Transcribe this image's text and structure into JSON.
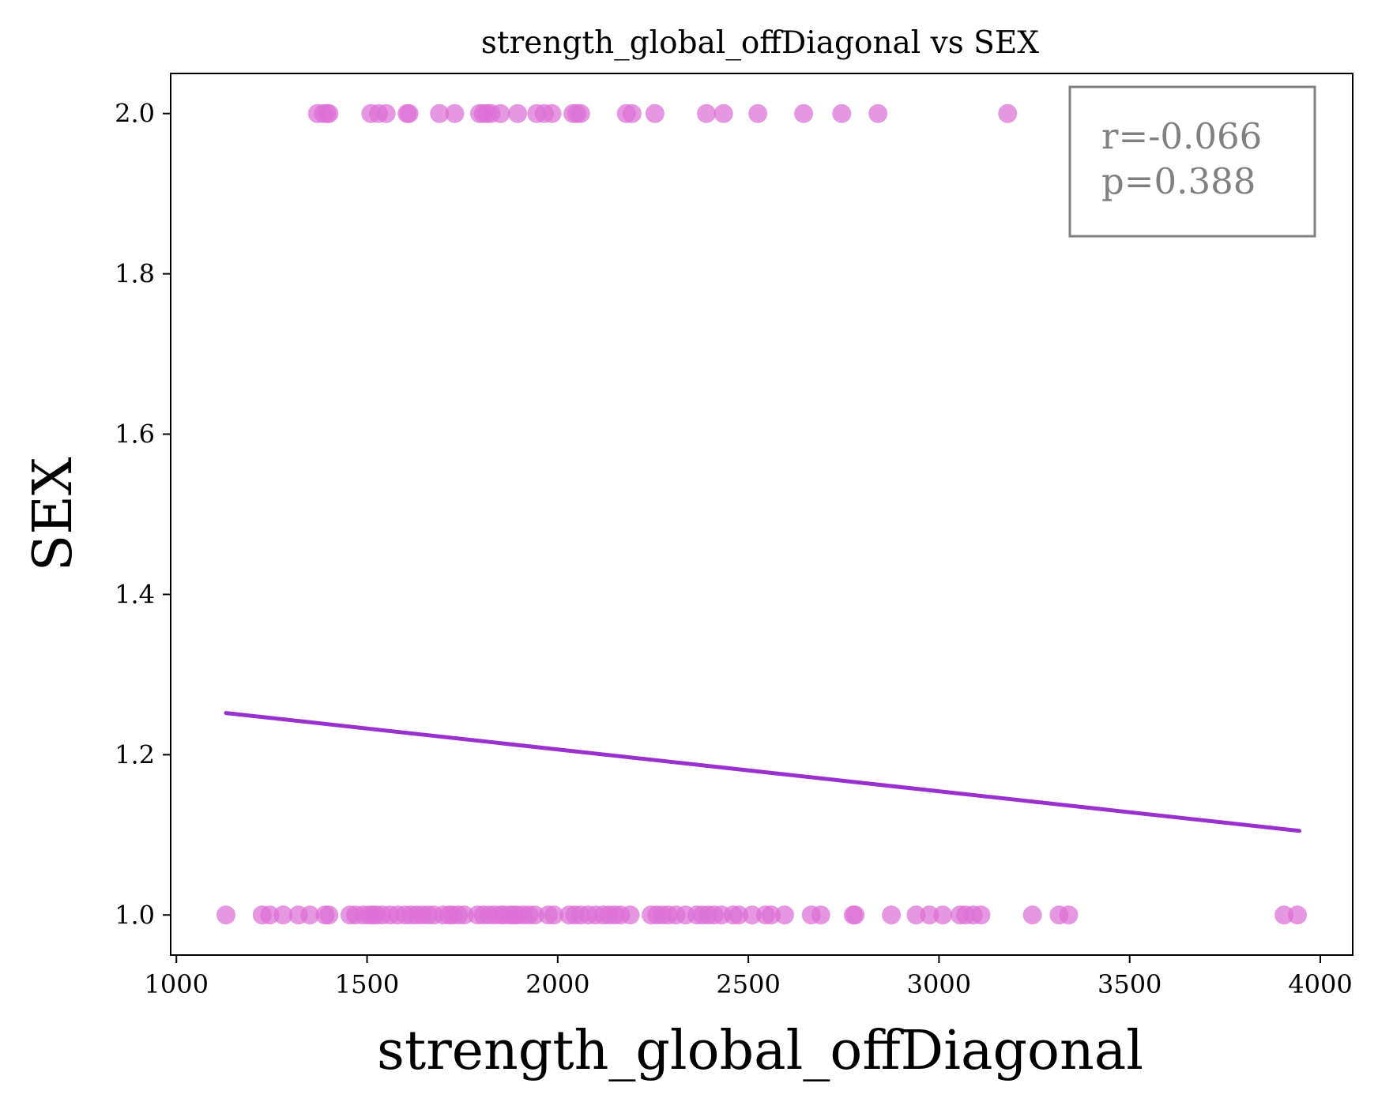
{
  "colors": {
    "points": "#dd6fd6",
    "fit_line": "#9b30d0",
    "stats_text": "#808080",
    "stats_border": "#808080"
  },
  "chart_data": {
    "type": "scatter",
    "title": "strength_global_offDiagonal vs SEX",
    "xlabel": "strength_global_offDiagonal",
    "ylabel": "SEX",
    "xlim": [
      985,
      4085
    ],
    "ylim": [
      0.95,
      2.05
    ],
    "xticks": [
      1000,
      1500,
      2000,
      2500,
      3000,
      3500,
      4000
    ],
    "yticks": [
      1.0,
      1.2,
      1.4,
      1.6,
      1.8,
      2.0
    ],
    "xtick_labels": [
      "1000",
      "1500",
      "2000",
      "2500",
      "3000",
      "3500",
      "4000"
    ],
    "ytick_labels": [
      "1.0",
      "1.2",
      "1.4",
      "1.6",
      "1.8",
      "2.0"
    ],
    "grid": false,
    "series": [
      {
        "points": [
          [
            1370,
            2
          ],
          [
            1385,
            2
          ],
          [
            1395,
            2
          ],
          [
            1400,
            2
          ],
          [
            1510,
            2
          ],
          [
            1530,
            2
          ],
          [
            1550,
            2
          ],
          [
            1605,
            2
          ],
          [
            1610,
            2
          ],
          [
            1690,
            2
          ],
          [
            1730,
            2
          ],
          [
            1795,
            2
          ],
          [
            1805,
            2
          ],
          [
            1815,
            2
          ],
          [
            1825,
            2
          ],
          [
            1850,
            2
          ],
          [
            1895,
            2
          ],
          [
            1945,
            2
          ],
          [
            1965,
            2
          ],
          [
            1985,
            2
          ],
          [
            2040,
            2
          ],
          [
            2050,
            2
          ],
          [
            2060,
            2
          ],
          [
            2180,
            2
          ],
          [
            2195,
            2
          ],
          [
            2255,
            2
          ],
          [
            2390,
            2
          ],
          [
            2435,
            2
          ],
          [
            2525,
            2
          ],
          [
            2645,
            2
          ],
          [
            2745,
            2
          ],
          [
            2840,
            2
          ],
          [
            3180,
            2
          ],
          [
            1130,
            1
          ],
          [
            1225,
            1
          ],
          [
            1245,
            1
          ],
          [
            1280,
            1
          ],
          [
            1320,
            1
          ],
          [
            1350,
            1
          ],
          [
            1390,
            1
          ],
          [
            1400,
            1
          ],
          [
            1455,
            1
          ],
          [
            1470,
            1
          ],
          [
            1490,
            1
          ],
          [
            1505,
            1
          ],
          [
            1515,
            1
          ],
          [
            1525,
            1
          ],
          [
            1540,
            1
          ],
          [
            1560,
            1
          ],
          [
            1580,
            1
          ],
          [
            1600,
            1
          ],
          [
            1615,
            1
          ],
          [
            1630,
            1
          ],
          [
            1645,
            1
          ],
          [
            1660,
            1
          ],
          [
            1675,
            1
          ],
          [
            1700,
            1
          ],
          [
            1715,
            1
          ],
          [
            1725,
            1
          ],
          [
            1740,
            1
          ],
          [
            1755,
            1
          ],
          [
            1790,
            1
          ],
          [
            1805,
            1
          ],
          [
            1820,
            1
          ],
          [
            1835,
            1
          ],
          [
            1850,
            1
          ],
          [
            1860,
            1
          ],
          [
            1875,
            1
          ],
          [
            1885,
            1
          ],
          [
            1895,
            1
          ],
          [
            1910,
            1
          ],
          [
            1925,
            1
          ],
          [
            1940,
            1
          ],
          [
            1975,
            1
          ],
          [
            1990,
            1
          ],
          [
            2030,
            1
          ],
          [
            2045,
            1
          ],
          [
            2060,
            1
          ],
          [
            2080,
            1
          ],
          [
            2100,
            1
          ],
          [
            2120,
            1
          ],
          [
            2135,
            1
          ],
          [
            2150,
            1
          ],
          [
            2165,
            1
          ],
          [
            2190,
            1
          ],
          [
            2245,
            1
          ],
          [
            2260,
            1
          ],
          [
            2275,
            1
          ],
          [
            2290,
            1
          ],
          [
            2310,
            1
          ],
          [
            2335,
            1
          ],
          [
            2365,
            1
          ],
          [
            2380,
            1
          ],
          [
            2395,
            1
          ],
          [
            2410,
            1
          ],
          [
            2430,
            1
          ],
          [
            2460,
            1
          ],
          [
            2475,
            1
          ],
          [
            2510,
            1
          ],
          [
            2545,
            1
          ],
          [
            2560,
            1
          ],
          [
            2595,
            1
          ],
          [
            2665,
            1
          ],
          [
            2690,
            1
          ],
          [
            2775,
            1
          ],
          [
            2780,
            1
          ],
          [
            2875,
            1
          ],
          [
            2940,
            1
          ],
          [
            2975,
            1
          ],
          [
            3010,
            1
          ],
          [
            3055,
            1
          ],
          [
            3070,
            1
          ],
          [
            3090,
            1
          ],
          [
            3110,
            1
          ],
          [
            3245,
            1
          ],
          [
            3315,
            1
          ],
          [
            3340,
            1
          ],
          [
            3905,
            1
          ],
          [
            3940,
            1
          ]
        ]
      }
    ],
    "fit_line": {
      "x": [
        1130,
        3945
      ],
      "y": [
        1.252,
        1.105
      ]
    },
    "stats": {
      "r": "r=-0.066",
      "p": "p=0.388"
    }
  }
}
